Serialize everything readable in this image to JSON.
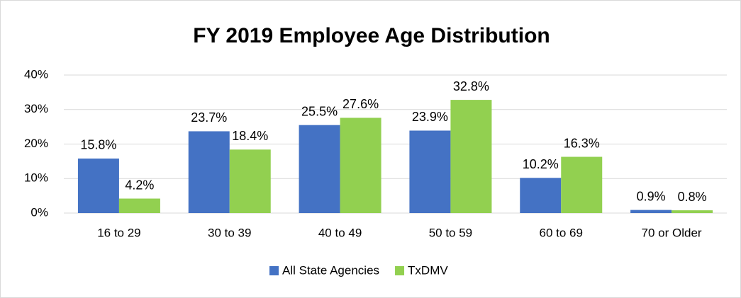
{
  "chart_data": {
    "type": "bar",
    "title": "FY 2019 Employee Age Distribution",
    "categories": [
      "16 to 29",
      "30 to 39",
      "40 to 49",
      "50 to 59",
      "60 to 69",
      "70 or Older"
    ],
    "series": [
      {
        "name": "All State Agencies",
        "color": "#4472c4",
        "values": [
          15.8,
          23.7,
          25.5,
          23.9,
          10.2,
          0.9
        ],
        "value_labels": [
          "15.8%",
          "23.7%",
          "25.5%",
          "23.9%",
          "10.2%",
          "0.9%"
        ]
      },
      {
        "name": "TxDMV",
        "color": "#92d050",
        "values": [
          4.2,
          18.4,
          27.6,
          32.8,
          16.3,
          0.8
        ],
        "value_labels": [
          "4.2%",
          "18.4%",
          "27.6%",
          "32.8%",
          "16.3%",
          "0.8%"
        ]
      }
    ],
    "ylim": [
      0,
      40
    ],
    "yticks": [
      {
        "value": 0,
        "label": "0%"
      },
      {
        "value": 10,
        "label": "10%"
      },
      {
        "value": 20,
        "label": "20%"
      },
      {
        "value": 30,
        "label": "30%"
      },
      {
        "value": 40,
        "label": "40%"
      }
    ],
    "grid": true,
    "legend": "bottom"
  }
}
